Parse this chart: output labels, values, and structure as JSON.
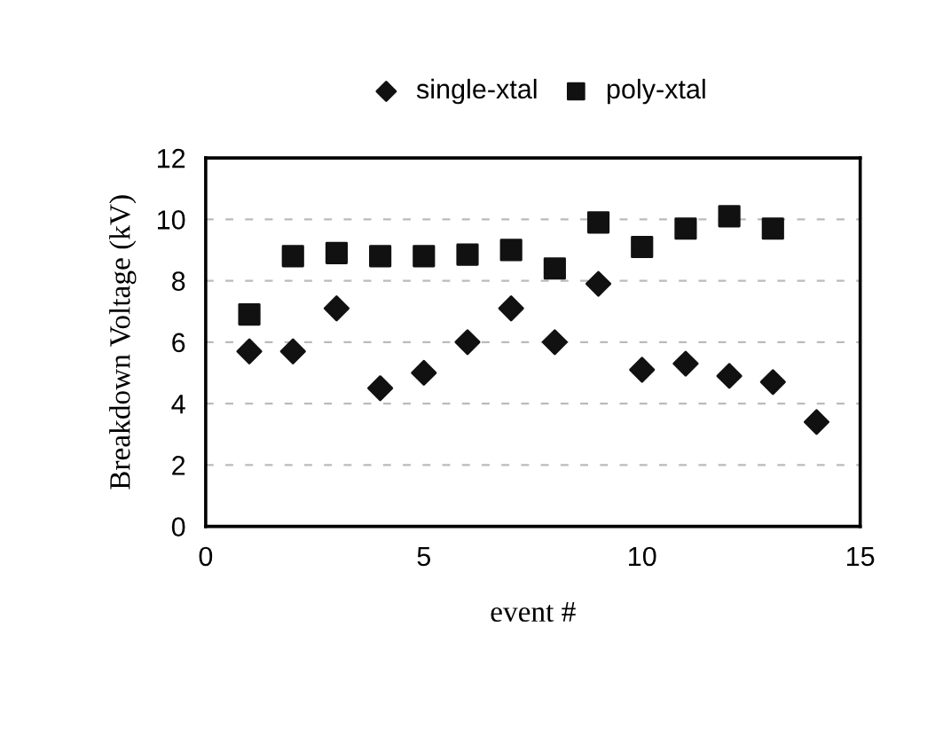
{
  "chart_data": {
    "type": "scatter",
    "xlabel": "event #",
    "ylabel": "Breakdown Voltage (kV)",
    "x": [
      1,
      2,
      3,
      4,
      5,
      6,
      7,
      8,
      9,
      10,
      11,
      12,
      13,
      14
    ],
    "series": [
      {
        "name": "single-xtal",
        "color": "#111111",
        "marker": "diamond",
        "values": [
          5.7,
          5.7,
          7.1,
          4.5,
          5.0,
          6.0,
          7.1,
          6.0,
          7.9,
          5.1,
          5.3,
          4.9,
          4.7,
          3.4
        ]
      },
      {
        "name": "poly-xtal",
        "color": "#111111",
        "marker": "square",
        "x": [
          1,
          2,
          3,
          4,
          5,
          6,
          7,
          8,
          9,
          10,
          11,
          12,
          13
        ],
        "values": [
          6.9,
          8.8,
          8.9,
          8.8,
          8.8,
          8.85,
          9.0,
          8.4,
          9.9,
          9.1,
          9.7,
          10.1,
          9.7
        ]
      }
    ],
    "xlim": [
      0,
      15
    ],
    "xticks": [
      0,
      5,
      10,
      15
    ],
    "ylim": [
      0,
      12
    ],
    "yticks": [
      0,
      2,
      4,
      6,
      8,
      10,
      12
    ],
    "grid": "y",
    "legend": "top"
  }
}
